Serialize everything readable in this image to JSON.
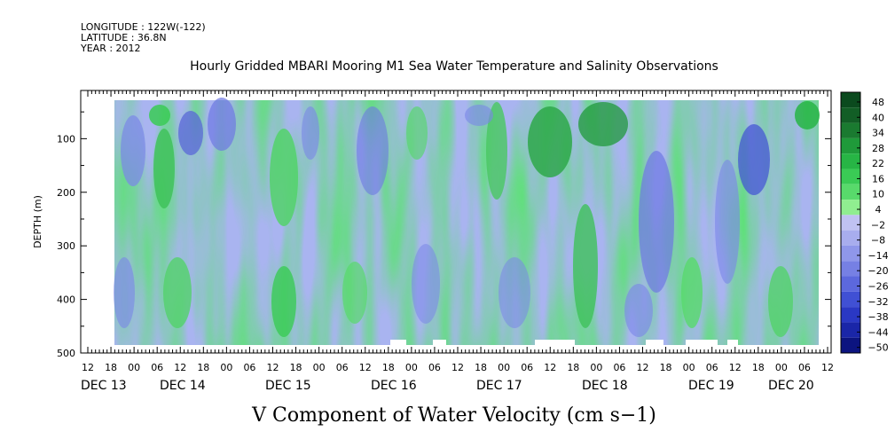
{
  "header": {
    "longitude": "LONGITUDE : 122W(-122)",
    "latitude": "LATITUDE : 36.8N",
    "year": "YEAR : 2012"
  },
  "chart_data": {
    "type": "heatmap",
    "title": "Hourly Gridded MBARI Mooring M1 Sea Water Temperature and Salinity Observations",
    "xlabel": "V Component of Water Velocity (cm s−1)",
    "ylabel": "DEPTH (m)",
    "ylim": [
      500,
      10
    ],
    "y_ticks": [
      100,
      200,
      300,
      400,
      500
    ],
    "x_hour_ticks": [
      "12",
      "18",
      "00",
      "06",
      "12",
      "18",
      "00",
      "06",
      "12",
      "18",
      "00",
      "06",
      "12",
      "18",
      "00",
      "06",
      "12",
      "18",
      "00",
      "06",
      "12",
      "18",
      "00",
      "06",
      "12",
      "18",
      "00",
      "06",
      "12",
      "18",
      "00",
      "06",
      "12"
    ],
    "x_date_labels": [
      "DEC 13",
      "DEC 14",
      "DEC 15",
      "DEC 16",
      "DEC 17",
      "DEC 18",
      "DEC 19",
      "DEC 20"
    ],
    "colorbar_levels": [
      "48",
      "40",
      "34",
      "28",
      "22",
      "16",
      "10",
      "4",
      "−2",
      "−8",
      "−14",
      "−20",
      "−26",
      "−32",
      "−38",
      "−44",
      "−50"
    ],
    "colorbar_colors": [
      "#0b4a1e",
      "#125e26",
      "#1a7a30",
      "#1f9a3a",
      "#27b545",
      "#3acb55",
      "#58da6b",
      "#90ee90",
      "#c0c2f2",
      "#a8adee",
      "#8f97ea",
      "#7680e4",
      "#5c68dd",
      "#4050d4",
      "#2a38c4",
      "#1a26a8",
      "#0c1480"
    ],
    "grid": false,
    "legend_placement": "right colorbar"
  }
}
